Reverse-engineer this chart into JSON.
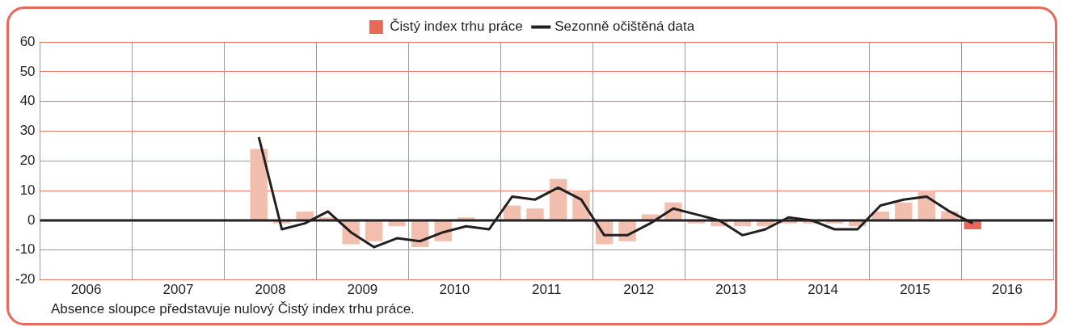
{
  "chart_data": {
    "type": "bar",
    "x": [
      2008.375,
      2008.625,
      2008.875,
      2009.125,
      2009.375,
      2009.625,
      2009.875,
      2010.125,
      2010.375,
      2010.625,
      2010.875,
      2011.125,
      2011.375,
      2011.625,
      2011.875,
      2012.125,
      2012.375,
      2012.625,
      2012.875,
      2013.125,
      2013.375,
      2013.625,
      2013.875,
      2014.125,
      2014.375,
      2014.625,
      2014.875,
      2015.125,
      2015.375,
      2015.625,
      2015.875,
      2016.125
    ],
    "series": [
      {
        "name": "Čistý index trhu práce",
        "color": "#e8685a",
        "colors": [
          "#f2bfae",
          "#f2bfae",
          "#f2bfae",
          "#f2bfae",
          "#f2bfae",
          "#f2bfae",
          "#f2bfae",
          "#f2bfae",
          "#f2bfae",
          "#f2bfae",
          "#f2bfae",
          "#f2bfae",
          "#f2bfae",
          "#f2bfae",
          "#f2bfae",
          "#f2bfae",
          "#f2bfae",
          "#f2bfae",
          "#f2bfae",
          "#f2bfae",
          "#f2bfae",
          "#f2bfae",
          "#f2bfae",
          "#f2bfae",
          "#f2bfae",
          "#f2bfae",
          "#f2bfae",
          "#f2bfae",
          "#f2bfae",
          "#f2bfae",
          "#f2bfae",
          "#e8685a"
        ],
        "values": [
          24,
          -1,
          3,
          1,
          -8,
          -7,
          -2,
          -9,
          -7,
          1,
          0,
          5,
          4,
          14,
          10,
          -8,
          -7,
          2,
          6,
          -1,
          -2,
          -2,
          -2,
          -1,
          -1,
          -1,
          -2,
          3,
          6,
          10,
          3,
          -3
        ]
      },
      {
        "name": "Sezonně očištěná data",
        "type": "line",
        "color": "#231f20",
        "values": [
          28,
          -3,
          -1,
          3,
          -4,
          -9,
          -6,
          -7,
          -4,
          -2,
          -3,
          8,
          7,
          11,
          7,
          -5,
          -5,
          -1,
          4,
          2,
          0,
          -5,
          -3,
          1,
          0,
          -3,
          -3,
          5,
          7,
          8,
          3,
          -1
        ]
      }
    ],
    "xlim": [
      2006,
      2017
    ],
    "xticks": [
      {
        "value": 2006,
        "label": null
      },
      {
        "value": 2006.5,
        "label": "2006"
      },
      {
        "value": 2007,
        "label": null
      },
      {
        "value": 2007.5,
        "label": "2007"
      },
      {
        "value": 2008,
        "label": null
      },
      {
        "value": 2008.5,
        "label": "2008"
      },
      {
        "value": 2009,
        "label": null
      },
      {
        "value": 2009.5,
        "label": "2009"
      },
      {
        "value": 2010,
        "label": null
      },
      {
        "value": 2010.5,
        "label": "2010"
      },
      {
        "value": 2011,
        "label": null
      },
      {
        "value": 2011.5,
        "label": "2011"
      },
      {
        "value": 2012,
        "label": null
      },
      {
        "value": 2012.5,
        "label": "2012"
      },
      {
        "value": 2013,
        "label": null
      },
      {
        "value": 2013.5,
        "label": "2013"
      },
      {
        "value": 2014,
        "label": null
      },
      {
        "value": 2014.5,
        "label": "2014"
      },
      {
        "value": 2015,
        "label": null
      },
      {
        "value": 2015.5,
        "label": "2015"
      },
      {
        "value": 2016,
        "label": null
      },
      {
        "value": 2016.5,
        "label": "2016"
      },
      {
        "value": 2017,
        "label": null
      }
    ],
    "ylim": [
      -20,
      60
    ],
    "yticks": [
      -20,
      -10,
      0,
      10,
      20,
      30,
      40,
      50,
      60
    ],
    "grid": true,
    "legend": "top",
    "ref_lines": [
      {
        "axis": "y",
        "value": 0,
        "color": "#231f20"
      }
    ],
    "annotations": [
      "Absence sloupce představuje nulový Čistý index trhu práce."
    ]
  }
}
